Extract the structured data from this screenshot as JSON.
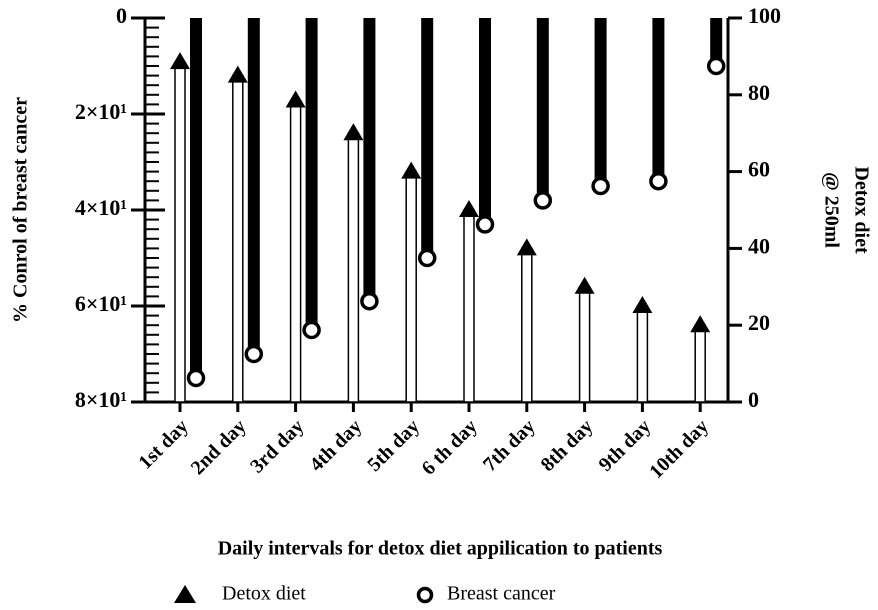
{
  "chart_data": {
    "type": "bar",
    "xlabel": "Daily intervals for detox diet appilication  to patients",
    "ylabel": "% Conrol of breast cancer",
    "y2label": [
      "Detox diet",
      "@ 250ml"
    ],
    "categories": [
      "1st day",
      "2nd day",
      "3rd day",
      "4th day",
      "5th day",
      "6 th day",
      "7th day",
      "8th day",
      "9th day",
      "10th day"
    ],
    "series": [
      {
        "name": "Detox diet",
        "color": "#ffffff",
        "marker": "triangle",
        "axis": "y2",
        "values": [
          88.5,
          85,
          78.5,
          70,
          60,
          50,
          40,
          30,
          25,
          20
        ]
      },
      {
        "name": "Breast cancer",
        "color": "#000000",
        "marker": "circle",
        "values": [
          75,
          70,
          65,
          59,
          50,
          43,
          38,
          35,
          34,
          10
        ]
      }
    ],
    "ylim": [
      0,
      80
    ],
    "y_inverted": true,
    "yticks": [
      0,
      {
        "value": 20,
        "label": "2×10¹"
      },
      {
        "value": 40,
        "label": "4×10¹"
      },
      {
        "value": 60,
        "label": "6×10¹"
      },
      {
        "value": 80,
        "label": "8×10¹"
      }
    ],
    "y2lim": [
      0,
      100
    ],
    "y2ticks": [
      0,
      20,
      40,
      60,
      80,
      100
    ],
    "grid": false,
    "legend": "bottom"
  }
}
